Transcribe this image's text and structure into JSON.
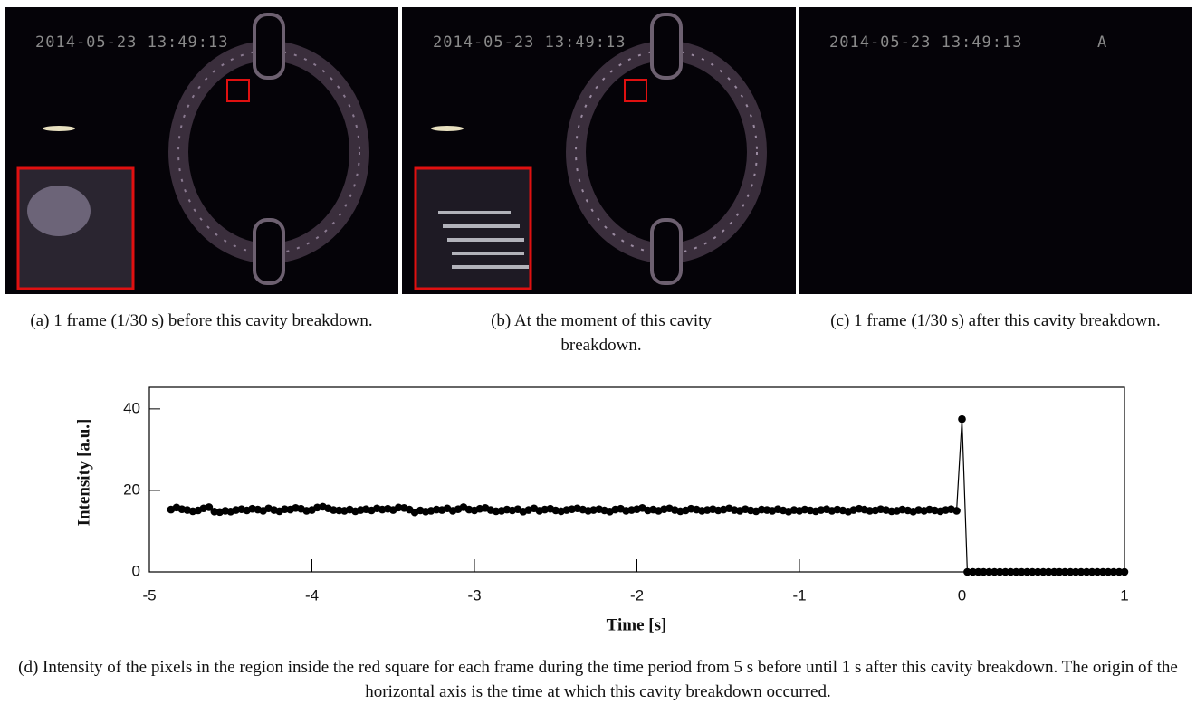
{
  "panels": [
    {
      "timestamp": "2014-05-23 13:49:13",
      "caption": "(a) 1 frame (1/30 s) before this cavity breakdown."
    },
    {
      "timestamp": "2014-05-23 13:49:13",
      "caption": "(b) At the moment of this cavity breakdown."
    },
    {
      "timestamp": "2014-05-23 13:49:13",
      "marker": "A",
      "caption": "(c) 1 frame (1/30 s) after this cavity breakdown."
    }
  ],
  "chart_caption": "(d) Intensity of the pixels in the region inside the red square for each frame during the time period from 5 s before until 1 s after this cavity breakdown. The origin of the horizontal axis is the time at which this cavity breakdown occurred.",
  "chart_data": {
    "type": "line",
    "xlabel": "Time [s]",
    "ylabel": "Intensity [a.u.]",
    "color": "#000000",
    "xlim": [
      -5,
      1
    ],
    "ylim": [
      0,
      45.3
    ],
    "xticks": [
      -5,
      -4,
      -3,
      -2,
      -1,
      0,
      1
    ],
    "yticks": [
      0,
      20,
      40
    ],
    "x": [
      -4.867,
      -4.833,
      -4.8,
      -4.767,
      -4.733,
      -4.7,
      -4.667,
      -4.633,
      -4.6,
      -4.567,
      -4.533,
      -4.5,
      -4.467,
      -4.433,
      -4.4,
      -4.367,
      -4.333,
      -4.3,
      -4.267,
      -4.233,
      -4.2,
      -4.167,
      -4.133,
      -4.1,
      -4.067,
      -4.033,
      -4,
      -3.967,
      -3.933,
      -3.9,
      -3.867,
      -3.833,
      -3.8,
      -3.767,
      -3.733,
      -3.7,
      -3.667,
      -3.633,
      -3.6,
      -3.567,
      -3.533,
      -3.5,
      -3.467,
      -3.433,
      -3.4,
      -3.367,
      -3.333,
      -3.3,
      -3.267,
      -3.233,
      -3.2,
      -3.167,
      -3.133,
      -3.1,
      -3.067,
      -3.033,
      -3,
      -2.967,
      -2.933,
      -2.9,
      -2.867,
      -2.833,
      -2.8,
      -2.767,
      -2.733,
      -2.7,
      -2.667,
      -2.633,
      -2.6,
      -2.567,
      -2.533,
      -2.5,
      -2.467,
      -2.433,
      -2.4,
      -2.367,
      -2.333,
      -2.3,
      -2.267,
      -2.233,
      -2.2,
      -2.167,
      -2.133,
      -2.1,
      -2.067,
      -2.033,
      -2,
      -1.967,
      -1.933,
      -1.9,
      -1.867,
      -1.833,
      -1.8,
      -1.767,
      -1.733,
      -1.7,
      -1.667,
      -1.633,
      -1.6,
      -1.567,
      -1.533,
      -1.5,
      -1.467,
      -1.433,
      -1.4,
      -1.367,
      -1.333,
      -1.3,
      -1.267,
      -1.233,
      -1.2,
      -1.167,
      -1.133,
      -1.1,
      -1.067,
      -1.033,
      -1,
      -0.967,
      -0.933,
      -0.9,
      -0.867,
      -0.833,
      -0.8,
      -0.767,
      -0.733,
      -0.7,
      -0.667,
      -0.633,
      -0.6,
      -0.567,
      -0.533,
      -0.5,
      -0.467,
      -0.433,
      -0.4,
      -0.367,
      -0.333,
      -0.3,
      -0.267,
      -0.233,
      -0.2,
      -0.167,
      -0.133,
      -0.1,
      -0.067,
      -0.033,
      0,
      0.033,
      0.067,
      0.1,
      0.133,
      0.167,
      0.2,
      0.233,
      0.267,
      0.3,
      0.333,
      0.367,
      0.4,
      0.433,
      0.467,
      0.5,
      0.533,
      0.567,
      0.6,
      0.633,
      0.667,
      0.7,
      0.733,
      0.767,
      0.8,
      0.833,
      0.867,
      0.9,
      0.933,
      0.967,
      1
    ],
    "values": [
      15.3,
      15.8,
      15.4,
      15.2,
      14.9,
      15.1,
      15.6,
      15.9,
      14.8,
      14.7,
      15.0,
      14.8,
      15.2,
      15.4,
      15.1,
      15.5,
      15.3,
      15.0,
      15.6,
      15.2,
      14.9,
      15.4,
      15.3,
      15.7,
      15.5,
      15.0,
      15.2,
      15.8,
      16.0,
      15.6,
      15.2,
      15.1,
      15.0,
      15.3,
      14.9,
      15.2,
      15.4,
      15.1,
      15.6,
      15.3,
      15.5,
      15.2,
      15.8,
      15.7,
      15.3,
      14.6,
      15.1,
      14.8,
      15.0,
      15.3,
      15.2,
      15.6,
      15.0,
      15.4,
      15.9,
      15.3,
      15.1,
      15.5,
      15.7,
      15.2,
      14.9,
      15.0,
      15.3,
      15.1,
      15.4,
      14.8,
      15.2,
      15.6,
      15.0,
      15.3,
      15.5,
      15.1,
      14.9,
      15.2,
      15.4,
      15.6,
      15.3,
      15.0,
      15.2,
      15.4,
      15.1,
      14.8,
      15.3,
      15.5,
      15.0,
      15.2,
      15.4,
      15.7,
      15.1,
      15.3,
      15.0,
      15.4,
      15.6,
      15.2,
      14.9,
      15.1,
      15.5,
      15.3,
      15.0,
      15.2,
      15.4,
      15.1,
      15.3,
      15.6,
      15.2,
      15.0,
      15.4,
      15.1,
      14.9,
      15.3,
      15.2,
      15.0,
      15.4,
      15.1,
      14.8,
      15.2,
      15.0,
      15.3,
      15.1,
      14.9,
      15.2,
      15.4,
      15.0,
      15.3,
      15.1,
      14.8,
      15.2,
      15.5,
      15.3,
      15.0,
      15.1,
      15.4,
      15.2,
      14.9,
      15.0,
      15.3,
      15.1,
      14.8,
      15.2,
      15.0,
      15.3,
      15.1,
      14.9,
      15.2,
      15.4,
      15.0,
      37.5,
      0,
      0,
      0,
      0,
      0,
      0,
      0,
      0,
      0,
      0,
      0,
      0,
      0,
      0,
      0,
      0,
      0,
      0,
      0,
      0,
      0,
      0,
      0,
      0,
      0,
      0,
      0,
      0,
      0,
      0
    ]
  }
}
